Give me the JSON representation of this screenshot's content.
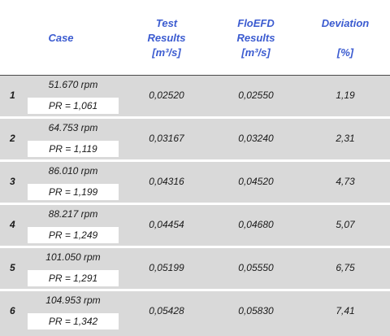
{
  "header": {
    "case": "Case",
    "test_l1": "Test",
    "test_l2": "Results",
    "test_l3": "[m³/s]",
    "flo_l1": "FloEFD",
    "flo_l2": "Results",
    "flo_l3": "[m³/s]",
    "dev_l1": "Deviation",
    "dev_l2": "[%]"
  },
  "rows": [
    {
      "num": "1",
      "rpm": "51.670 rpm",
      "pr": "PR = 1,061",
      "test": "0,02520",
      "flo": "0,02550",
      "dev": "1,19"
    },
    {
      "num": "2",
      "rpm": "64.753 rpm",
      "pr": "PR = 1,119",
      "test": "0,03167",
      "flo": "0,03240",
      "dev": "2,31"
    },
    {
      "num": "3",
      "rpm": "86.010 rpm",
      "pr": "PR = 1,199",
      "test": "0,04316",
      "flo": "0,04520",
      "dev": "4,73"
    },
    {
      "num": "4",
      "rpm": "88.217 rpm",
      "pr": "PR = 1,249",
      "test": "0,04454",
      "flo": "0,04680",
      "dev": "5,07"
    },
    {
      "num": "5",
      "rpm": "101.050 rpm",
      "pr": "PR = 1,291",
      "test": "0,05199",
      "flo": "0,05550",
      "dev": "6,75"
    },
    {
      "num": "6",
      "rpm": "104.953 rpm",
      "pr": "PR = 1,342",
      "test": "0,05428",
      "flo": "0,05830",
      "dev": "7,41"
    }
  ]
}
